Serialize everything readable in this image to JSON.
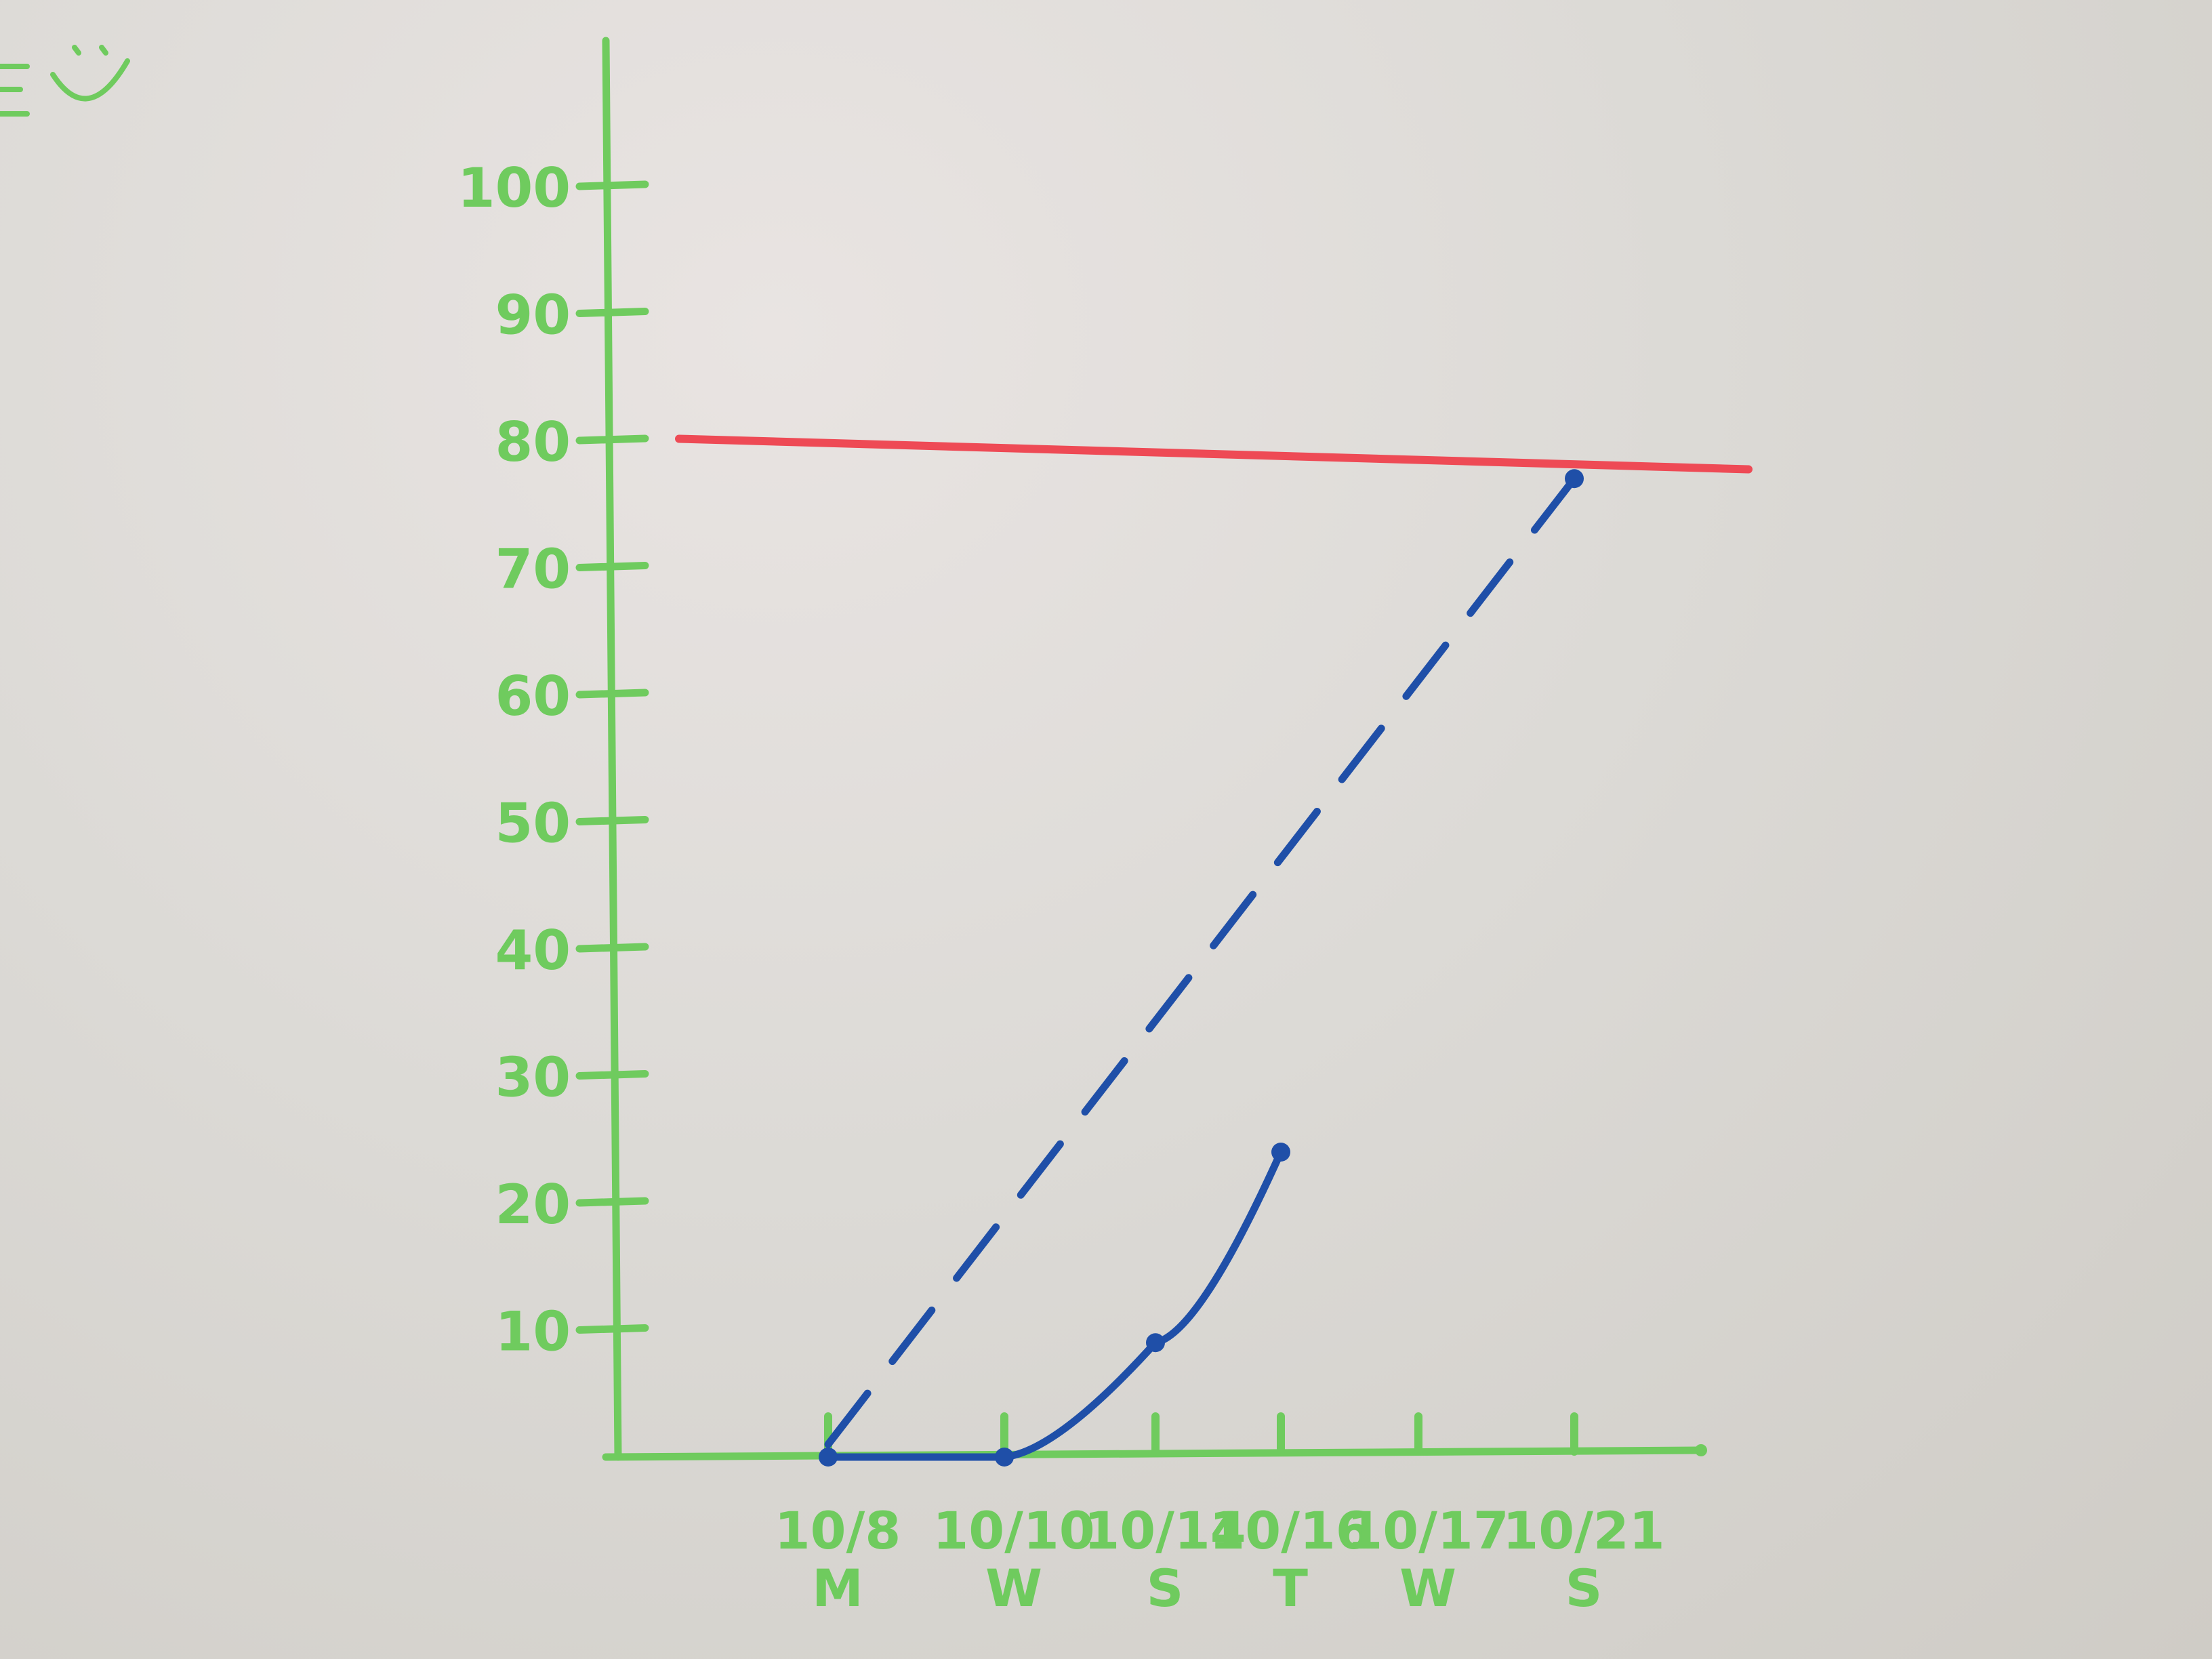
{
  "colors": {
    "axis": "#6fcb5e",
    "target_line": "#ee4a55",
    "series": "#1f4fa8",
    "board": "#dcdad6"
  },
  "chart_data": {
    "type": "line",
    "title": "",
    "xlabel": "",
    "ylabel": "",
    "ylim": [
      0,
      100
    ],
    "yticks": [
      "10",
      "20",
      "30",
      "40",
      "50",
      "60",
      "70",
      "80",
      "90",
      "100"
    ],
    "xticks": [
      {
        "date": "10/8",
        "day": "M"
      },
      {
        "date": "10/10",
        "day": "W"
      },
      {
        "date": "10/14",
        "day": "S"
      },
      {
        "date": "10/16",
        "day": "T"
      },
      {
        "date": "10/17",
        "day": "W"
      },
      {
        "date": "10/21",
        "day": "S"
      }
    ],
    "target": {
      "value": 78
    },
    "series": [
      {
        "style": "solid",
        "points": [
          {
            "x": "10/8",
            "y": 0
          },
          {
            "x": "10/10",
            "y": 0
          },
          {
            "x": "10/14",
            "y": 9
          },
          {
            "x": "10/16",
            "y": 24
          }
        ]
      },
      {
        "style": "dashed",
        "points": [
          {
            "x": "10/8",
            "y": 1
          },
          {
            "x": "10/21",
            "y": 77
          }
        ]
      }
    ]
  }
}
